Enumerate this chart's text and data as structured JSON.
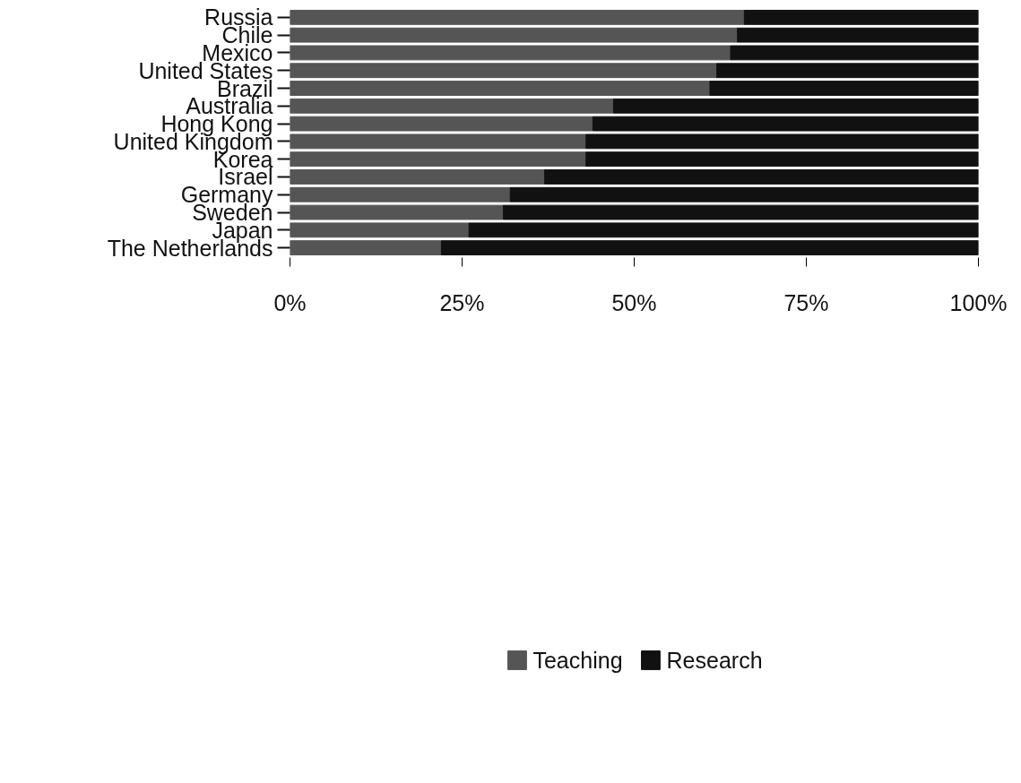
{
  "chart_data": {
    "type": "bar",
    "orientation": "horizontal",
    "stacked": true,
    "categories": [
      "Russia",
      "Chile",
      "Mexico",
      "United States",
      "Brazil",
      "Australia",
      "Hong Kong",
      "United Kingdom",
      "Korea",
      "Israel",
      "Germany",
      "Sweden",
      "Japan",
      "The Netherlands"
    ],
    "series": [
      {
        "name": "Teaching",
        "color": "#555555",
        "values": [
          66,
          65,
          64,
          62,
          61,
          47,
          44,
          43,
          43,
          37,
          32,
          31,
          26,
          22
        ]
      },
      {
        "name": "Research",
        "color": "#111111",
        "values": [
          34,
          35,
          36,
          38,
          39,
          53,
          56,
          57,
          57,
          63,
          68,
          69,
          74,
          78
        ]
      }
    ],
    "xlim": [
      0,
      100
    ],
    "xticks": [
      {
        "value": 0,
        "label": "0%"
      },
      {
        "value": 25,
        "label": "25%"
      },
      {
        "value": 50,
        "label": "50%"
      },
      {
        "value": 75,
        "label": "75%"
      },
      {
        "value": 100,
        "label": "100%"
      }
    ],
    "legend": "bottom"
  }
}
